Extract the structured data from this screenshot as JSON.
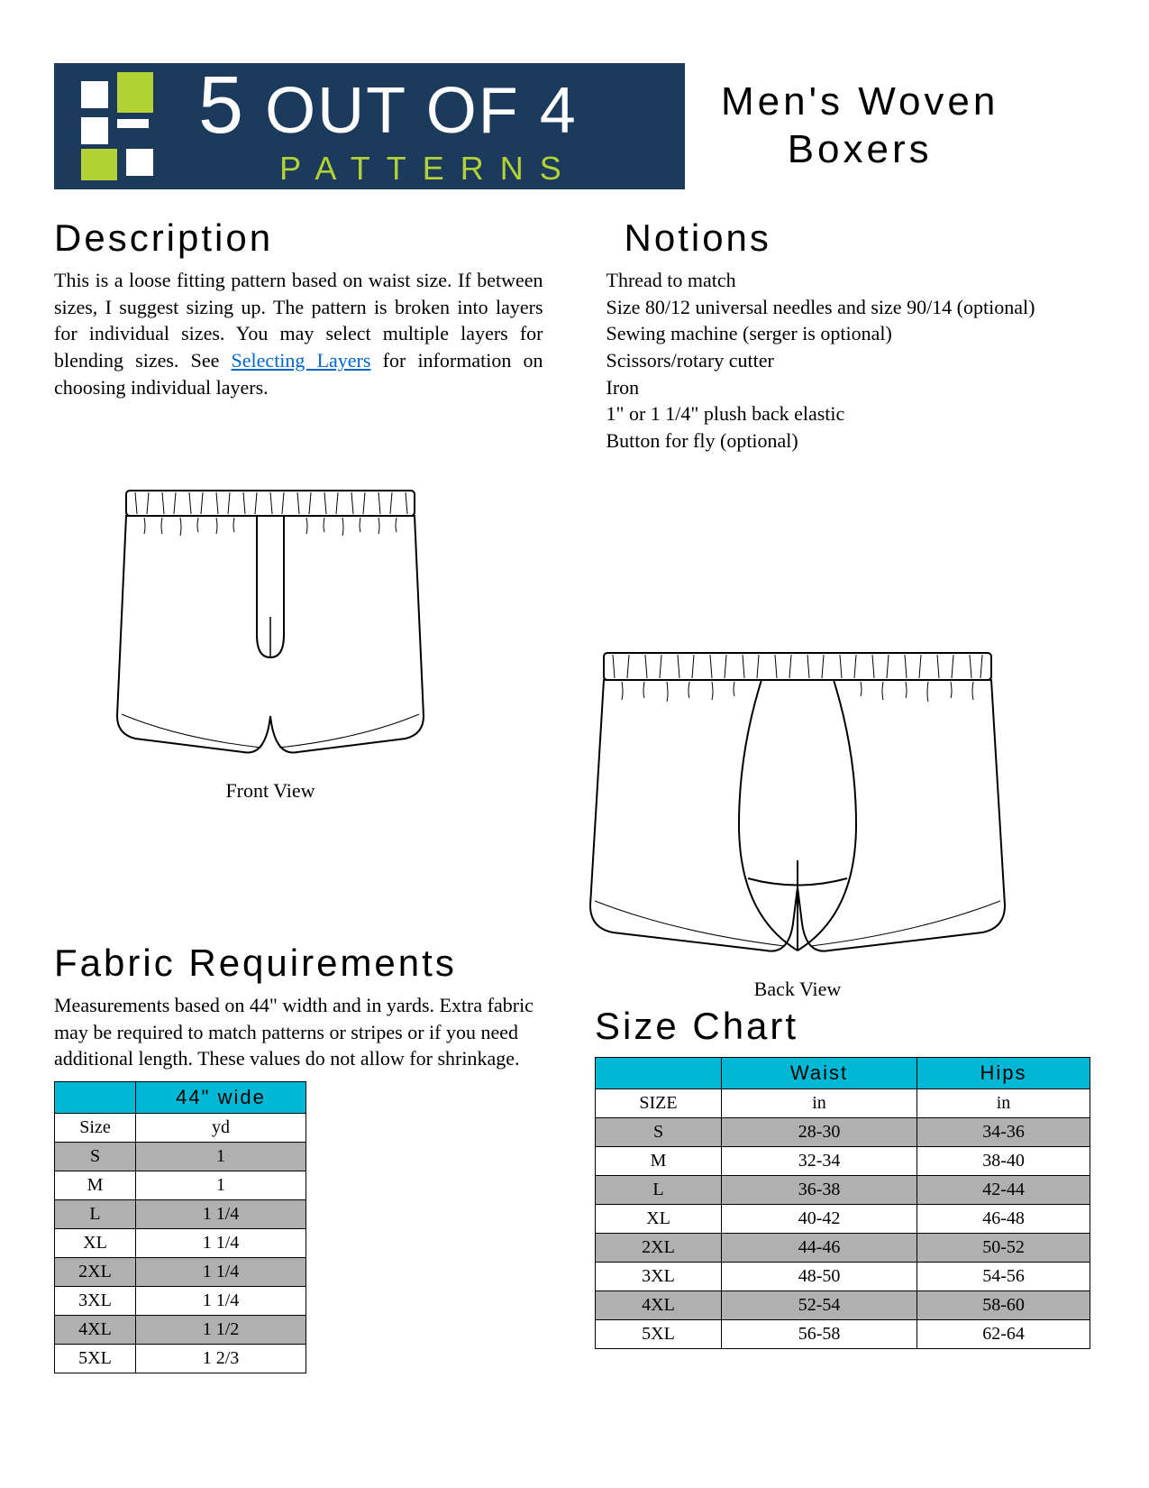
{
  "header": {
    "logo_line1_five": "5",
    "logo_line1_rest": " OUT OF 4",
    "logo_line2": "PATTERNS",
    "title_line1": "Men's  Woven",
    "title_line2": "Boxers"
  },
  "description": {
    "heading": "Description",
    "text_before_link": "This is a loose fitting pattern based on waist size. If between sizes, I suggest sizing up. The pattern is broken into layers for individual sizes. You may select multiple layers for blending sizes. See ",
    "link_text": "Selecting Layers",
    "text_after_link": " for information on choosing individual layers."
  },
  "notions": {
    "heading": "Notions",
    "items": [
      "Thread to match",
      "Size 80/12 universal needles and size 90/14 (optional)",
      "Sewing machine (serger is optional)",
      "Scissors/rotary cutter",
      "Iron",
      "1\" or 1 1/4\" plush back elastic",
      "Button for fly (optional)"
    ]
  },
  "diagrams": {
    "front_label": "Front View",
    "back_label": "Back View"
  },
  "fabric": {
    "heading": "Fabric  Requirements",
    "note": "Measurements based on 44\" width and in yards. Extra fabric may be required to match patterns or stripes or if you need additional length. These values do not allow for shrinkage.",
    "header_col2": "44\"  wide",
    "subheader": [
      "Size",
      "yd"
    ],
    "rows": [
      {
        "size": "S",
        "yd": "1",
        "shaded": true
      },
      {
        "size": "M",
        "yd": "1",
        "shaded": false
      },
      {
        "size": "L",
        "yd": "1 1/4",
        "shaded": true
      },
      {
        "size": "XL",
        "yd": "1 1/4",
        "shaded": false
      },
      {
        "size": "2XL",
        "yd": "1 1/4",
        "shaded": true
      },
      {
        "size": "3XL",
        "yd": "1 1/4",
        "shaded": false
      },
      {
        "size": "4XL",
        "yd": "1 1/2",
        "shaded": true
      },
      {
        "size": "5XL",
        "yd": "1 2/3",
        "shaded": false
      }
    ]
  },
  "size_chart": {
    "heading": "Size  Chart",
    "header_cols": [
      "",
      "Waist",
      "Hips"
    ],
    "subheader": [
      "SIZE",
      "in",
      "in"
    ],
    "rows": [
      {
        "size": "S",
        "waist": "28-30",
        "hips": "34-36",
        "shaded": true
      },
      {
        "size": "M",
        "waist": "32-34",
        "hips": "38-40",
        "shaded": false
      },
      {
        "size": "L",
        "waist": "36-38",
        "hips": "42-44",
        "shaded": true
      },
      {
        "size": "XL",
        "waist": "40-42",
        "hips": "46-48",
        "shaded": false
      },
      {
        "size": "2XL",
        "waist": "44-46",
        "hips": "50-52",
        "shaded": true
      },
      {
        "size": "3XL",
        "waist": "48-50",
        "hips": "54-56",
        "shaded": false
      },
      {
        "size": "4XL",
        "waist": "52-54",
        "hips": "58-60",
        "shaded": true
      },
      {
        "size": "5XL",
        "waist": "56-58",
        "hips": "62-64",
        "shaded": false
      }
    ]
  },
  "colors": {
    "navy": "#1b3a5c",
    "lime": "#b3d235",
    "cyan": "#00b8d4",
    "grey": "#b0b0b0"
  }
}
